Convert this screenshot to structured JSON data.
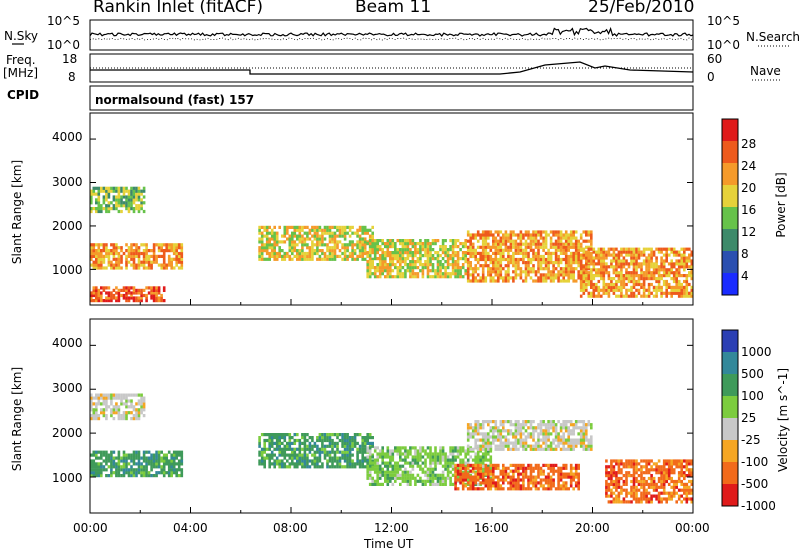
{
  "header": {
    "station": "Rankin Inlet (fitACF)",
    "beam": "Beam 11",
    "date": "25/Feb/2010"
  },
  "side_labels": {
    "nsky": "N.Sky",
    "nsearch": "N.Search",
    "freq_line1": "Freq.",
    "freq_line2": "[MHz]",
    "nave": "Nave",
    "cpid": "CPID"
  },
  "noise_panel": {
    "left_ticks": [
      "10^5",
      "10^0"
    ],
    "right_ticks": [
      "10^5",
      "10^0"
    ]
  },
  "freq_panel": {
    "left_ticks": [
      "18",
      "8"
    ],
    "right_ticks": [
      "60",
      "0"
    ]
  },
  "cpid_text": "normalsound (fast) 157",
  "x_axis": {
    "ticks": [
      "00:00",
      "04:00",
      "08:00",
      "12:00",
      "16:00",
      "20:00",
      "00:00"
    ],
    "label": "Time UT"
  },
  "chart_data": [
    {
      "type": "heatmap",
      "panel": "power",
      "ylabel": "Slant Range [km]",
      "yticks": [
        "1000",
        "2000",
        "3000",
        "4000"
      ],
      "ylim": [
        180,
        4600
      ],
      "xlim_hours": [
        0,
        24
      ],
      "colorbar": {
        "label": "Power [dB]",
        "ticks": [
          "4",
          "8",
          "12",
          "16",
          "20",
          "24",
          "28"
        ],
        "colors": [
          "#1a2bff",
          "#2a4fb0",
          "#3d8a6a",
          "#66c24a",
          "#e6d23a",
          "#f59a2a",
          "#ee5a1c",
          "#e01b1b"
        ]
      },
      "echo_regions": [
        {
          "t": [
            0.0,
            3.7
          ],
          "r": [
            1000,
            1600
          ],
          "level": 24
        },
        {
          "t": [
            0.0,
            3.0
          ],
          "r": [
            250,
            600
          ],
          "level": 26
        },
        {
          "t": [
            0.0,
            2.2
          ],
          "r": [
            2300,
            2900
          ],
          "level": 14
        },
        {
          "t": [
            6.7,
            11.3
          ],
          "r": [
            1200,
            2000
          ],
          "level": 18
        },
        {
          "t": [
            11.0,
            15.0
          ],
          "r": [
            800,
            1700
          ],
          "level": 20
        },
        {
          "t": [
            15.0,
            20.0
          ],
          "r": [
            700,
            1900
          ],
          "level": 22
        },
        {
          "t": [
            19.5,
            24.0
          ],
          "r": [
            350,
            1500
          ],
          "level": 24
        }
      ]
    },
    {
      "type": "heatmap",
      "panel": "velocity",
      "ylabel": "Slant Range [km]",
      "yticks": [
        "1000",
        "2000",
        "3000",
        "4000"
      ],
      "ylim": [
        180,
        4600
      ],
      "xlim_hours": [
        0,
        24
      ],
      "colorbar": {
        "label": "Velocity [m s^-1]",
        "ticks": [
          "1000",
          "500",
          "100",
          "25",
          "-25",
          "-100",
          "-500",
          "-1000"
        ],
        "colors": [
          "#2b3fb4",
          "#33889a",
          "#3f9a5a",
          "#7ccc3e",
          "#c8c8c8",
          "#f5a623",
          "#f26a1b",
          "#e01b1b"
        ]
      },
      "echo_regions": [
        {
          "t": [
            0.0,
            3.7
          ],
          "r": [
            1000,
            1600
          ],
          "velocity": 300
        },
        {
          "t": [
            0.0,
            2.2
          ],
          "r": [
            2300,
            2900
          ],
          "velocity": 0
        },
        {
          "t": [
            6.7,
            11.3
          ],
          "r": [
            1200,
            2000
          ],
          "velocity": 200
        },
        {
          "t": [
            11.0,
            16.0
          ],
          "r": [
            800,
            1700
          ],
          "velocity": 50
        },
        {
          "t": [
            15.0,
            20.0
          ],
          "r": [
            1600,
            2300
          ],
          "velocity": 0
        },
        {
          "t": [
            14.5,
            19.5
          ],
          "r": [
            700,
            1300
          ],
          "velocity": -150
        },
        {
          "t": [
            20.5,
            24.0
          ],
          "r": [
            400,
            1400
          ],
          "velocity": -200
        }
      ]
    }
  ]
}
